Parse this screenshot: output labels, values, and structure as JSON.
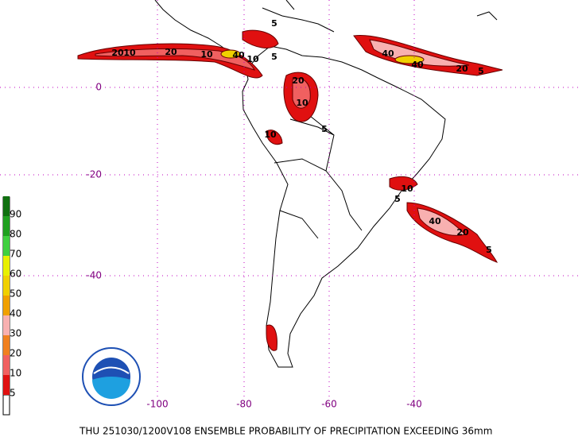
{
  "map": {
    "lat_labels": [
      "0",
      "-20",
      "-40"
    ],
    "lon_labels": [
      "-100",
      "-80",
      "-60",
      "-40"
    ],
    "contour_labels": [
      "20",
      "10",
      "20",
      "10",
      "5",
      "10",
      "40",
      "5",
      "40",
      "40",
      "20",
      "5",
      "20",
      "10",
      "10",
      "5",
      "40",
      "20",
      "5",
      "10",
      "5"
    ]
  },
  "legend": {
    "entries": [
      {
        "label": "5",
        "color": "#e01010"
      },
      {
        "label": "10",
        "color": "#f06060"
      },
      {
        "label": "20",
        "color": "#f08020"
      },
      {
        "label": "30",
        "color": "#f8b0b0"
      },
      {
        "label": "40",
        "color": "#f0a000"
      },
      {
        "label": "50",
        "color": "#f0d000"
      },
      {
        "label": "60",
        "color": "#e8f000"
      },
      {
        "label": "70",
        "color": "#40d040"
      },
      {
        "label": "80",
        "color": "#20a020"
      },
      {
        "label": "90",
        "color": "#107010"
      }
    ]
  },
  "footer": {
    "title": "THU 251030/1200V108  ENSEMBLE PROBABILITY OF PRECIPITATION EXCEEDING 36mm"
  }
}
